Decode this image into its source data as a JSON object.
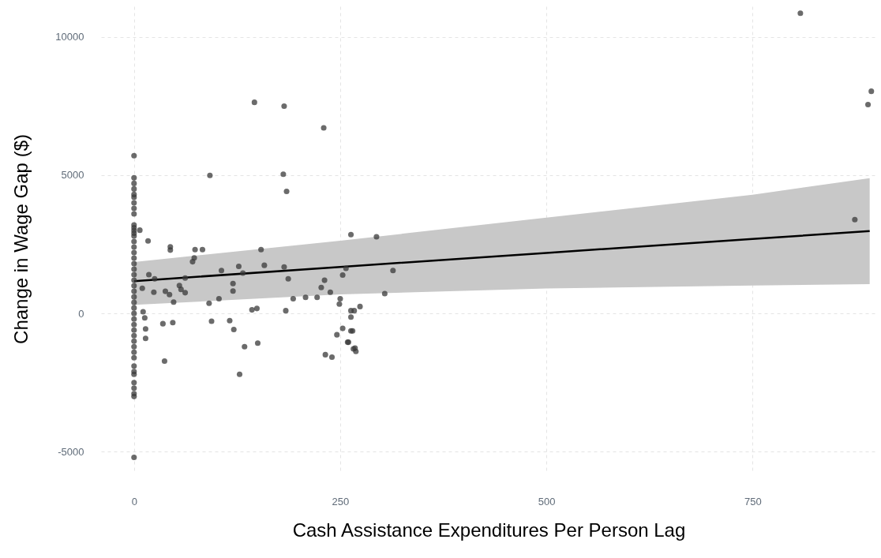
{
  "chart_data": {
    "type": "scatter",
    "xlabel": "Cash Assistance Expenditures Per Person Lag",
    "ylabel": "Change in Wage Gap ($)",
    "xlim": [
      -40,
      900
    ],
    "ylim": [
      -5700,
      11100
    ],
    "xticks": [
      0,
      250,
      500,
      750
    ],
    "yticks": [
      -5000,
      0,
      5000,
      10000
    ],
    "grid": true,
    "series": [
      {
        "type": "scatter",
        "color": "#3a3a3a",
        "marker": "circle",
        "x": [
          0,
          0,
          0,
          0,
          0,
          0,
          0,
          0,
          0,
          0,
          0,
          0,
          0,
          0,
          0,
          0,
          0,
          0,
          0,
          0,
          0,
          0,
          0,
          0,
          0,
          0,
          0,
          0,
          0,
          0,
          0,
          0,
          0,
          0,
          0,
          0,
          0,
          0,
          0,
          0,
          0,
          0,
          0,
          0,
          7,
          17,
          44,
          44,
          74,
          83,
          73,
          71,
          18,
          25,
          10,
          24,
          38,
          43,
          48,
          55,
          62,
          57,
          62,
          11,
          13,
          14,
          14,
          35,
          47,
          37,
          146,
          182,
          230,
          92,
          181,
          185,
          263,
          154,
          158,
          106,
          127,
          132,
          120,
          120,
          91,
          103,
          94,
          116,
          121,
          143,
          149,
          134,
          150,
          128,
          182,
          187,
          184,
          193,
          208,
          222,
          231,
          227,
          238,
          253,
          257,
          250,
          249,
          263,
          263,
          253,
          246,
          259,
          232,
          240,
          263,
          266,
          294,
          314,
          304,
          274,
          267,
          265,
          260,
          268,
          269,
          808,
          894,
          890,
          874
        ],
        "values": [
          5700,
          4900,
          4700,
          4500,
          4300,
          4200,
          4000,
          3800,
          3600,
          3200,
          3100,
          3000,
          2900,
          2800,
          2600,
          2400,
          2200,
          2000,
          1800,
          1600,
          1400,
          1200,
          1000,
          800,
          600,
          400,
          200,
          0,
          -200,
          -400,
          -600,
          -800,
          -1000,
          -1200,
          -1400,
          -1600,
          -1900,
          -2100,
          -2200,
          -2500,
          -2700,
          -2900,
          -3000,
          -5200,
          3010,
          2620,
          2410,
          2290,
          2310,
          2310,
          2010,
          1870,
          1400,
          1250,
          910,
          770,
          800,
          680,
          410,
          1010,
          750,
          870,
          1280,
          60,
          -160,
          -560,
          -900,
          -370,
          -330,
          -1720,
          7630,
          7490,
          6710,
          4990,
          5030,
          4410,
          2850,
          2310,
          1740,
          1550,
          1700,
          1460,
          1080,
          810,
          370,
          530,
          -280,
          -260,
          -580,
          130,
          180,
          -1200,
          -1070,
          -2200,
          1680,
          1250,
          100,
          530,
          580,
          580,
          1200,
          940,
          770,
          1390,
          1630,
          530,
          340,
          100,
          -130,
          -540,
          -770,
          -1040,
          -1490,
          -1580,
          -630,
          -1280,
          2770,
          1550,
          720,
          250,
          100,
          -630,
          -1040,
          -1250,
          -1370,
          10850,
          8030,
          7550,
          3390
        ]
      },
      {
        "type": "line",
        "color": "#000000",
        "x": [
          0,
          250,
          500,
          750,
          892
        ],
        "values": [
          1170,
          1680,
          2190,
          2690,
          2980
        ],
        "lower": [
          310,
          690,
          900,
          1010,
          1060
        ],
        "upper": [
          1860,
          2630,
          3460,
          4290,
          4890
        ]
      }
    ]
  }
}
